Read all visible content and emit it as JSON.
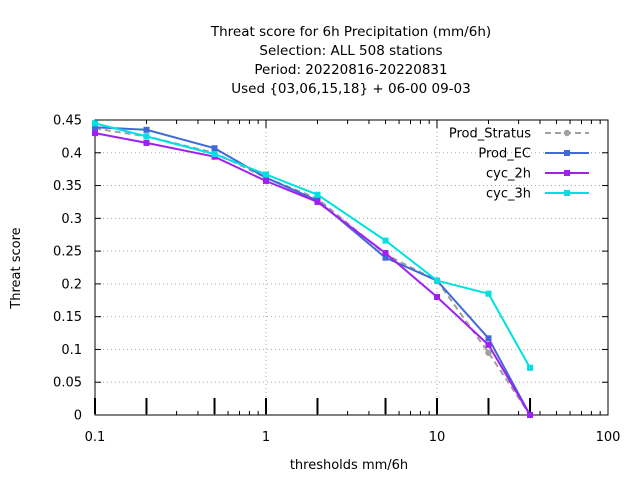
{
  "chart_data": {
    "type": "line",
    "title": [
      "Threat score  for 6h Precipitation (mm/6h)",
      "Selection: ALL    508 stations",
      "Period: 20220816-20220831",
      "Used {03,06,15,18} + 06-00 09-03"
    ],
    "xlabel": "thresholds mm/6h",
    "ylabel": "Threat score",
    "x_scale": "log",
    "xlim": [
      0.1,
      100
    ],
    "ylim": [
      0,
      0.45
    ],
    "x_ticks": [
      {
        "value": 0.1,
        "label": "0.1"
      },
      {
        "value": 1,
        "label": "1"
      },
      {
        "value": 10,
        "label": "10"
      },
      {
        "value": 100,
        "label": "100"
      }
    ],
    "y_ticks": [
      {
        "value": 0,
        "label": "0"
      },
      {
        "value": 0.05,
        "label": "0.05"
      },
      {
        "value": 0.1,
        "label": "0.1"
      },
      {
        "value": 0.15,
        "label": "0.15"
      },
      {
        "value": 0.2,
        "label": "0.2"
      },
      {
        "value": 0.25,
        "label": "0.25"
      },
      {
        "value": 0.3,
        "label": "0.3"
      },
      {
        "value": 0.35,
        "label": "0.35"
      },
      {
        "value": 0.4,
        "label": "0.4"
      },
      {
        "value": 0.45,
        "label": "0.45"
      }
    ],
    "grid": true,
    "legend_position": "top-right",
    "threshold_marks": [
      0.1,
      0.2,
      0.5,
      1,
      2,
      5,
      10,
      20,
      35
    ],
    "x": [
      0.1,
      0.2,
      0.5,
      1,
      2,
      5,
      10,
      20,
      35
    ],
    "series": [
      {
        "name": "Prod_Stratus",
        "color": "#a0a0a0",
        "dashed": true,
        "marker": "circle",
        "values": [
          0.437,
          0.425,
          0.4,
          0.362,
          0.33,
          0.245,
          0.205,
          0.095,
          0.0
        ]
      },
      {
        "name": "Prod_EC",
        "color": "#4169d8",
        "dashed": false,
        "marker": "square",
        "values": [
          0.439,
          0.435,
          0.407,
          0.362,
          0.327,
          0.24,
          0.205,
          0.117,
          0.0
        ]
      },
      {
        "name": "cyc_2h",
        "color": "#a020f0",
        "dashed": false,
        "marker": "square",
        "values": [
          0.43,
          0.415,
          0.394,
          0.357,
          0.325,
          0.247,
          0.18,
          0.107,
          0.0
        ]
      },
      {
        "name": "cyc_3h",
        "color": "#00e0e0",
        "dashed": false,
        "marker": "square",
        "values": [
          0.445,
          0.425,
          0.398,
          0.367,
          0.336,
          0.266,
          0.205,
          0.185,
          0.072
        ]
      }
    ]
  }
}
